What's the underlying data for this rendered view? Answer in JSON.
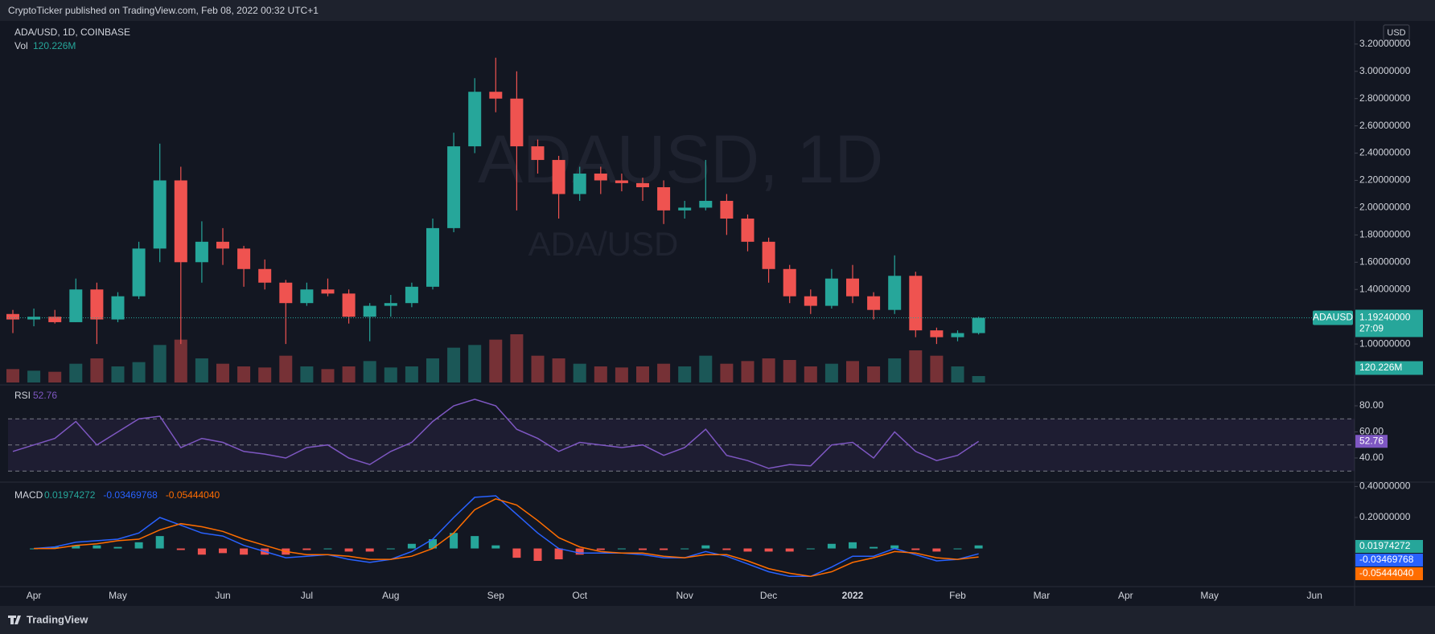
{
  "header": {
    "publisher": "CryptoTicker published on TradingView.com, Feb 08, 2022 00:32 UTC+1"
  },
  "footer": {
    "brand": "TradingView"
  },
  "chart_data": [
    {
      "type": "candlestick",
      "title": "ADA/USD, 1D, COINBASE",
      "watermark": "ADAUSD, 1D",
      "watermark_subtitle": "ADA/USD",
      "currency": "USD",
      "categories": [
        null,
        "Apr",
        null,
        null,
        null,
        "May",
        null,
        null,
        null,
        null,
        "Jun",
        null,
        null,
        null,
        "Jul",
        null,
        null,
        null,
        "Aug",
        null,
        null,
        null,
        null,
        "Sep",
        null,
        null,
        null,
        "Oct",
        null,
        null,
        null,
        null,
        "Nov",
        null,
        null,
        null,
        "Dec",
        null,
        null,
        null,
        "2022",
        null,
        null,
        null,
        null,
        "Feb",
        null,
        null,
        null,
        "Mar",
        null,
        null,
        null,
        "Apr",
        null,
        null,
        null,
        "May",
        null,
        null,
        null,
        null,
        "Jun",
        null
      ],
      "series": [
        {
          "name": "ADAUSD",
          "up_color": "#26a69a",
          "down_color": "#ef5350",
          "last_label": "1.19240000",
          "open": [
            1.22,
            1.18,
            1.2,
            1.16,
            1.4,
            1.18,
            1.35,
            1.7,
            2.2,
            1.6,
            1.75,
            1.7,
            1.55,
            1.45,
            1.3,
            1.4,
            1.37,
            1.2,
            1.28,
            1.3,
            1.42,
            1.85,
            2.45,
            2.85,
            2.8,
            2.45,
            2.35,
            2.1,
            2.25,
            2.2,
            2.18,
            2.15,
            1.98,
            2.0,
            2.05,
            1.92,
            1.75,
            1.55,
            1.35,
            1.28,
            1.48,
            1.35,
            1.25,
            1.5,
            1.1,
            1.05,
            1.08,
            null,
            null,
            null,
            null,
            null,
            null,
            null,
            null,
            null,
            null,
            null,
            null,
            null,
            null,
            null,
            null,
            null
          ],
          "high": [
            1.25,
            1.26,
            1.25,
            1.48,
            1.45,
            1.38,
            1.75,
            2.47,
            2.3,
            1.9,
            1.85,
            1.72,
            1.62,
            1.47,
            1.45,
            1.48,
            1.4,
            1.3,
            1.36,
            1.45,
            1.92,
            2.55,
            2.95,
            3.1,
            3.0,
            2.5,
            2.38,
            2.3,
            2.3,
            2.25,
            2.22,
            2.2,
            2.05,
            2.35,
            2.1,
            1.95,
            1.78,
            1.58,
            1.4,
            1.55,
            1.58,
            1.38,
            1.65,
            1.53,
            1.12,
            1.1,
            1.2,
            null,
            null,
            null,
            null,
            null,
            null,
            null,
            null,
            null,
            null,
            null,
            null,
            null,
            null,
            null,
            null,
            null
          ],
          "low": [
            1.08,
            1.13,
            1.15,
            1.16,
            1.0,
            1.16,
            1.33,
            1.6,
            1.0,
            1.45,
            1.58,
            1.42,
            1.4,
            1.0,
            1.28,
            1.35,
            1.15,
            1.02,
            1.2,
            1.27,
            1.4,
            1.82,
            2.4,
            2.7,
            1.98,
            2.25,
            1.92,
            2.05,
            2.1,
            2.12,
            2.05,
            1.88,
            1.92,
            1.98,
            1.8,
            1.68,
            1.45,
            1.3,
            1.22,
            1.26,
            1.3,
            1.18,
            1.22,
            1.05,
            1.0,
            1.02,
            1.07,
            null,
            null,
            null,
            null,
            null,
            null,
            null,
            null,
            null,
            null,
            null,
            null,
            null,
            null,
            null,
            null,
            null
          ],
          "close": [
            1.18,
            1.2,
            1.16,
            1.4,
            1.18,
            1.35,
            1.7,
            2.2,
            1.6,
            1.75,
            1.7,
            1.55,
            1.45,
            1.3,
            1.4,
            1.37,
            1.2,
            1.28,
            1.3,
            1.42,
            1.85,
            2.45,
            2.85,
            2.8,
            2.45,
            2.35,
            2.1,
            2.25,
            2.2,
            2.18,
            2.15,
            1.98,
            2.0,
            2.05,
            1.92,
            1.75,
            1.55,
            1.35,
            1.28,
            1.48,
            1.35,
            1.25,
            1.5,
            1.1,
            1.05,
            1.08,
            1.1924,
            null,
            null,
            null,
            null,
            null,
            null,
            null,
            null,
            null,
            null,
            null,
            null,
            null,
            null,
            null,
            null,
            null
          ]
        }
      ],
      "countdown": "27:09",
      "volume": {
        "name": "Vol",
        "last_label": "120.226M",
        "values": [
          250,
          220,
          200,
          350,
          450,
          300,
          380,
          700,
          800,
          450,
          350,
          300,
          280,
          500,
          300,
          250,
          300,
          400,
          280,
          300,
          450,
          650,
          700,
          800,
          900,
          500,
          450,
          350,
          300,
          280,
          300,
          350,
          300,
          500,
          350,
          400,
          450,
          420,
          300,
          350,
          400,
          300,
          450,
          600,
          500,
          300,
          120.226,
          null,
          null,
          null,
          null,
          null,
          null,
          null,
          null,
          null,
          null,
          null,
          null,
          null,
          null,
          null,
          null,
          null
        ]
      },
      "ylim": [
        0.7,
        3.37
      ],
      "yticks": [
        {
          "value": 1,
          "label": "1.00000000"
        },
        {
          "value": 1.4,
          "label": "1.40000000"
        },
        {
          "value": 1.6,
          "label": "1.60000000"
        },
        {
          "value": 1.8,
          "label": "1.80000000"
        },
        {
          "value": 2,
          "label": "2.00000000"
        },
        {
          "value": 2.2,
          "label": "2.20000000"
        },
        {
          "value": 2.4,
          "label": "2.40000000"
        },
        {
          "value": 2.6,
          "label": "2.60000000"
        },
        {
          "value": 2.8,
          "label": "2.80000000"
        },
        {
          "value": 3,
          "label": "3.00000000"
        },
        {
          "value": 3.2,
          "label": "3.20000000"
        }
      ],
      "grid": false
    },
    {
      "type": "line",
      "title": "RSI",
      "series": [
        {
          "color": "#7e57c2",
          "values": [
            45,
            50,
            55,
            68,
            50,
            60,
            70,
            72,
            48,
            55,
            52,
            45,
            43,
            40,
            48,
            50,
            40,
            35,
            45,
            52,
            68,
            80,
            85,
            80,
            62,
            55,
            45,
            52,
            50,
            48,
            50,
            42,
            48,
            62,
            42,
            38,
            32,
            35,
            34,
            50,
            52,
            40,
            60,
            45,
            38,
            42,
            52.76,
            null,
            null,
            null,
            null,
            null,
            null,
            null,
            null,
            null,
            null,
            null,
            null,
            null,
            null,
            null,
            null,
            null
          ]
        }
      ],
      "ylim": [
        21.5,
        96
      ],
      "band": [
        30,
        70
      ],
      "midline": 50,
      "band_color": "#7e57c2",
      "yticks": [
        {
          "value": 40,
          "label": "40.00"
        },
        {
          "value": 60,
          "label": "60.00"
        },
        {
          "value": 80,
          "label": "80.00"
        }
      ]
    },
    {
      "type": "macd",
      "title": "MACD",
      "series": [
        {
          "kind": "histogram",
          "up_color": "#26a69a",
          "down_color": "#ef5350",
          "values": [
            null,
            0,
            0.01,
            0.02,
            0.02,
            0.01,
            0.04,
            0.08,
            -0.01,
            -0.04,
            -0.03,
            -0.04,
            -0.04,
            -0.04,
            -0.01,
            0,
            -0.02,
            -0.02,
            0,
            0.03,
            0.06,
            0.1,
            0.08,
            0.02,
            -0.06,
            -0.08,
            -0.07,
            -0.04,
            -0.01,
            0,
            -0.01,
            -0.01,
            0,
            0.02,
            -0.01,
            -0.02,
            -0.02,
            -0.02,
            0,
            0.03,
            0.04,
            0.01,
            0.02,
            -0.01,
            -0.02,
            0,
            0.01974272,
            null,
            null,
            null,
            null,
            null,
            null,
            null,
            null,
            null,
            null,
            null,
            null,
            null,
            null,
            null,
            null,
            null
          ]
        },
        {
          "kind": "line",
          "color": "#2962ff",
          "values": [
            null,
            0,
            0.01,
            0.04,
            0.05,
            0.06,
            0.1,
            0.2,
            0.15,
            0.1,
            0.08,
            0.02,
            -0.02,
            -0.06,
            -0.05,
            -0.04,
            -0.07,
            -0.09,
            -0.07,
            -0.02,
            0.06,
            0.2,
            0.33,
            0.34,
            0.22,
            0.1,
            0,
            -0.03,
            -0.03,
            -0.03,
            -0.04,
            -0.06,
            -0.06,
            -0.02,
            -0.05,
            -0.1,
            -0.15,
            -0.18,
            -0.18,
            -0.12,
            -0.05,
            -0.05,
            0,
            -0.04,
            -0.08,
            -0.07,
            -0.03469768,
            null,
            null,
            null,
            null,
            null,
            null,
            null,
            null,
            null,
            null,
            null,
            null,
            null,
            null,
            null,
            null,
            null
          ]
        },
        {
          "kind": "line",
          "color": "#ff6d00",
          "last_label": "-0.05444040",
          "values": [
            null,
            0,
            0,
            0.02,
            0.03,
            0.05,
            0.06,
            0.12,
            0.16,
            0.14,
            0.11,
            0.06,
            0.02,
            -0.02,
            -0.04,
            -0.04,
            -0.05,
            -0.07,
            -0.07,
            -0.05,
            0,
            0.1,
            0.25,
            0.32,
            0.28,
            0.18,
            0.07,
            0.01,
            -0.02,
            -0.03,
            -0.03,
            -0.05,
            -0.06,
            -0.04,
            -0.04,
            -0.08,
            -0.13,
            -0.16,
            -0.18,
            -0.15,
            -0.09,
            -0.06,
            -0.02,
            -0.03,
            -0.06,
            -0.07,
            -0.0544404,
            null,
            null,
            null,
            null,
            null,
            null,
            null,
            null,
            null,
            null,
            null,
            null,
            null,
            null,
            null,
            null,
            null
          ]
        }
      ],
      "ylim": [
        -0.246,
        0.428
      ],
      "yticks": [
        {
          "value": 0.2,
          "label": "0.20000000"
        },
        {
          "value": 0.4,
          "label": "0.40000000"
        }
      ]
    }
  ]
}
